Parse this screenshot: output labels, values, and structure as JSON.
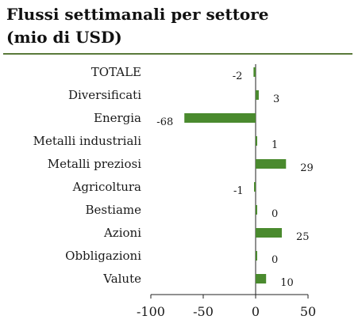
{
  "title_line1": "Flussi settimanali per settore",
  "title_line2": "(mio di USD)",
  "colors": {
    "bar": "#4a8a2e",
    "rule": "#5a7a3a",
    "axis": "#222222"
  },
  "chart_data": {
    "type": "bar",
    "orientation": "horizontal",
    "title": "Flussi settimanali per settore (mio di USD)",
    "categories": [
      "TOTALE",
      "Diversificati",
      "Energia",
      "Metalli industriali",
      "Metalli preziosi",
      "Agricoltura",
      "Bestiame",
      "Azioni",
      "Obbligazioni",
      "Valute"
    ],
    "values": [
      -2,
      3,
      -68,
      1,
      29,
      -1,
      0,
      25,
      0,
      10
    ],
    "value_labels": [
      "-2",
      "3",
      "-68",
      "1",
      "29",
      "-1",
      "0",
      "25",
      "0",
      "10"
    ],
    "xlim": [
      -100,
      50
    ],
    "xticks": [
      -100,
      -50,
      0,
      50
    ],
    "xtick_labels": [
      "-100",
      "-50",
      "0",
      "50"
    ],
    "grid": false,
    "legend": "none"
  }
}
